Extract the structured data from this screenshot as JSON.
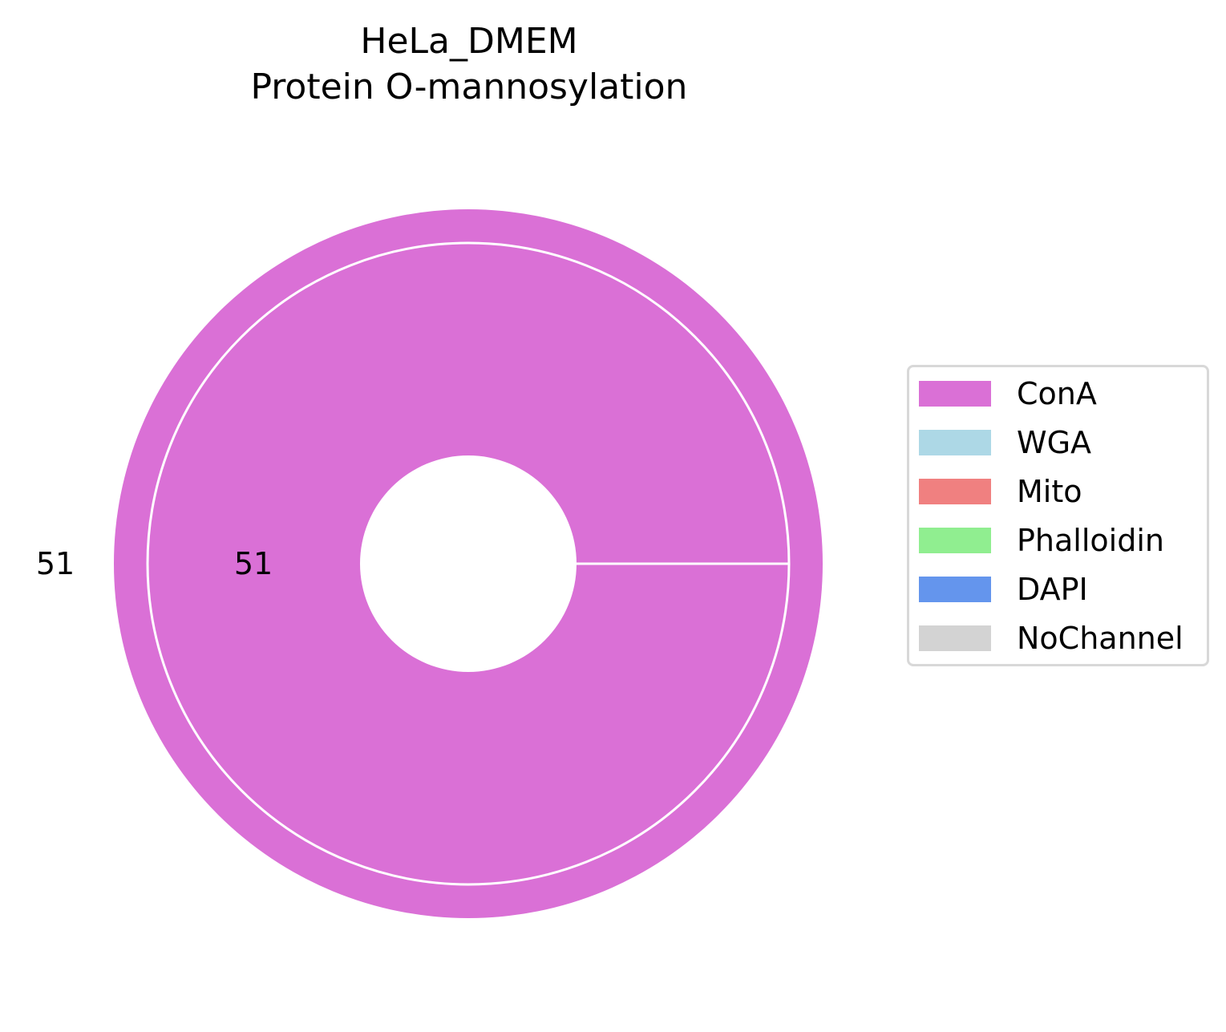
{
  "chart_data": {
    "type": "pie",
    "variant": "nested-donut",
    "title": "HeLa_DMEM",
    "subtitle": "Protein O-mannosylation",
    "rings": [
      {
        "name": "outer",
        "slices": [
          {
            "label": "ConA",
            "value": 51,
            "color": "#DA70D6"
          }
        ],
        "data_label": "51"
      },
      {
        "name": "inner",
        "slices": [
          {
            "label": "ConA",
            "value": 51,
            "color": "#DA70D6"
          }
        ],
        "data_label": "51"
      }
    ],
    "legend": {
      "placement": "right",
      "entries": [
        {
          "label": "ConA",
          "color": "#DA70D6"
        },
        {
          "label": "WGA",
          "color": "#ADD8E6"
        },
        {
          "label": "Mito",
          "color": "#F08080"
        },
        {
          "label": "Phalloidin",
          "color": "#90EE90"
        },
        {
          "label": "DAPI",
          "color": "#6495ED"
        },
        {
          "label": "NoChannel",
          "color": "#D3D3D3"
        }
      ]
    }
  }
}
